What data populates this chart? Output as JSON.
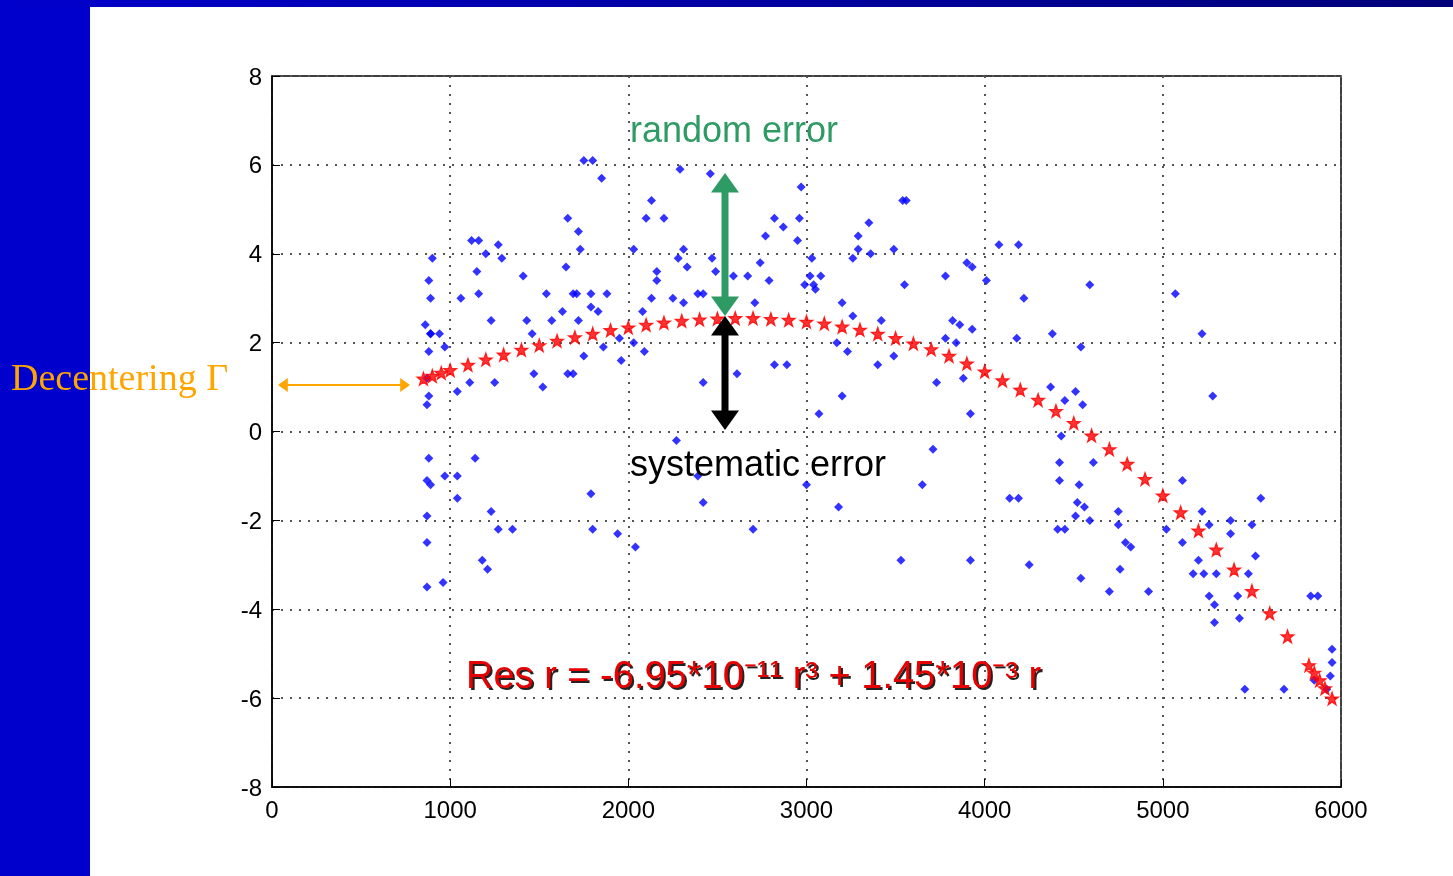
{
  "chart_data": {
    "type": "scatter",
    "xlim": [
      0,
      6000
    ],
    "xticks": [
      0,
      1000,
      2000,
      3000,
      4000,
      5000,
      6000
    ],
    "ylim": [
      -8,
      8
    ],
    "yticks": [
      -8,
      -6,
      -4,
      -2,
      0,
      2,
      4,
      6,
      8
    ],
    "grid": true,
    "annotations": [
      "random error",
      "systematic error",
      "Res r = -6.95*10⁻¹¹ r³ + 1.45*10⁻³ r",
      "Decentering Γ"
    ],
    "series": [
      {
        "color": "#0000ff",
        "marker": "diamond",
        "x": [
          900,
          880,
          890,
          860,
          890,
          880,
          870,
          880,
          870,
          880,
          870,
          890,
          870,
          870,
          870,
          960,
          1060,
          890,
          940,
          970,
          1040,
          1110,
          1250,
          1230,
          1120,
          1160,
          1200,
          1270,
          1290,
          1150,
          1160,
          1410,
          1430,
          1460,
          1470,
          1520,
          1540,
          1570,
          1630,
          1650,
          1660,
          1720,
          1730,
          1690,
          1710,
          1790,
          1880,
          1790,
          1830,
          1720,
          1660,
          1690,
          1750,
          1860,
          1950,
          1960,
          1750,
          1800,
          1850,
          2030,
          2100,
          2200,
          2130,
          2290,
          2460,
          2310,
          2280,
          2330,
          2160,
          2160,
          2130,
          2250,
          2310,
          2390,
          2420,
          2490,
          2470,
          2590,
          2670,
          2740,
          2770,
          2820,
          2870,
          2950,
          2960,
          2970,
          3030,
          3040,
          2790,
          2710,
          2080,
          2030,
          2090,
          2610,
          2420,
          2820,
          2890,
          3540,
          3560,
          3350,
          3290,
          3290,
          3260,
          3360,
          3490,
          3020,
          3080,
          2990,
          3050,
          3200,
          3550,
          3260,
          3420,
          3780,
          3900,
          3930,
          4010,
          4080,
          4190,
          4590,
          4220,
          5070,
          5220,
          5280,
          3820,
          3860,
          3930,
          3780,
          3840,
          4180,
          4380,
          4540,
          3170,
          3230,
          3490,
          3400,
          3730,
          3880,
          3200,
          3070,
          3920,
          4370,
          4510,
          4450,
          4550,
          1140,
          970,
          1040,
          1040,
          1230,
          1270,
          1350,
          1180,
          1210,
          1790,
          1800,
          1940,
          2040,
          2270,
          2390,
          2420,
          2700,
          3000,
          3710,
          3650,
          3180,
          3530,
          3920,
          4430,
          4420,
          4610,
          4420,
          4530,
          4140,
          4190,
          4520,
          4560,
          4510,
          4590,
          4750,
          4750,
          4790,
          4820,
          4410,
          4450,
          4250,
          4540,
          4760,
          4700,
          4920,
          5110,
          5550,
          5220,
          5020,
          5110,
          5260,
          5380,
          5500,
          5380,
          5520,
          5200,
          5170,
          5230,
          5300,
          5480,
          5260,
          5290,
          5420,
          5290,
          5430,
          5830,
          5870,
          5460,
          5680,
          5950,
          5950,
          5850,
          5920,
          5940
        ],
        "values": [
          3.9,
          3.4,
          3.0,
          2.4,
          2.2,
          1.8,
          1.2,
          0.8,
          0.6,
          -0.6,
          -1.1,
          -1.2,
          -1.9,
          -2.5,
          -3.5,
          -3.4,
          3.0,
          2.2,
          2.2,
          1.9,
          0.9,
          1.1,
          1.1,
          2.5,
          4.3,
          4.3,
          4.0,
          4.2,
          3.9,
          3.6,
          3.1,
          3.5,
          2.5,
          2.2,
          1.3,
          1.0,
          3.1,
          2.5,
          2.7,
          3.7,
          4.8,
          4.5,
          4.1,
          3.1,
          3.1,
          3.1,
          3.1,
          2.8,
          2.7,
          2.5,
          1.3,
          1.3,
          1.7,
          1.9,
          2.1,
          1.6,
          6.1,
          6.1,
          5.7,
          4.1,
          4.8,
          4.8,
          5.2,
          5.9,
          5.8,
          4.1,
          3.9,
          3.7,
          3.6,
          3.4,
          3.0,
          3.0,
          2.9,
          3.1,
          3.1,
          3.6,
          3.9,
          3.5,
          3.5,
          3.8,
          4.4,
          4.8,
          4.6,
          4.3,
          4.8,
          5.5,
          3.9,
          3.3,
          3.4,
          2.9,
          2.7,
          2.0,
          1.8,
          1.3,
          1.1,
          1.5,
          1.5,
          5.2,
          5.2,
          4.7,
          4.4,
          4.1,
          3.9,
          4.0,
          4.1,
          3.5,
          3.5,
          3.3,
          3.2,
          2.9,
          3.3,
          2.6,
          2.5,
          3.5,
          3.8,
          3.7,
          3.4,
          4.2,
          4.2,
          3.3,
          3.0,
          3.1,
          2.2,
          0.8,
          2.5,
          2.4,
          2.3,
          2.1,
          2.0,
          2.1,
          2.2,
          1.9,
          2.0,
          1.8,
          1.7,
          1.5,
          1.1,
          1.2,
          0.8,
          0.4,
          0.4,
          1.0,
          0.9,
          0.7,
          0.6,
          -0.6,
          -1.0,
          -1.0,
          -1.5,
          -1.8,
          -2.2,
          -2.2,
          -2.9,
          -3.1,
          -1.4,
          -2.2,
          -2.3,
          -2.6,
          -0.2,
          -1.0,
          -1.6,
          -2.2,
          -1.2,
          -0.4,
          -1.2,
          -1.7,
          -2.9,
          -2.9,
          -0.1,
          -0.7,
          -0.7,
          -1.1,
          -1.2,
          -1.5,
          -1.5,
          -1.6,
          -1.7,
          -1.9,
          -2.0,
          -1.8,
          -2.1,
          -2.5,
          -2.6,
          -2.2,
          -2.2,
          -3.0,
          -3.3,
          -3.1,
          -3.6,
          -3.6,
          -1.1,
          -1.5,
          -1.8,
          -2.2,
          -2.5,
          -2.1,
          -2.0,
          -2.1,
          -2.3,
          -2.8,
          -2.9,
          -3.2,
          -3.2,
          -3.2,
          -3.2,
          -3.7,
          -3.9,
          -3.7,
          -4.3,
          -4.2,
          -3.7,
          -3.7,
          -5.8,
          -5.8,
          -4.9,
          -5.2,
          -5.6,
          -5.8,
          -5.5
        ]
      },
      {
        "color": "#ff0000",
        "marker": "star",
        "x": [
          850,
          900,
          950,
          1000,
          1100,
          1200,
          1300,
          1400,
          1500,
          1600,
          1700,
          1800,
          1900,
          2000,
          2100,
          2200,
          2300,
          2400,
          2500,
          2600,
          2700,
          2800,
          2900,
          3000,
          3100,
          3200,
          3300,
          3400,
          3500,
          3600,
          3700,
          3800,
          3900,
          4000,
          4100,
          4200,
          4300,
          4400,
          4500,
          4600,
          4700,
          4800,
          4900,
          5000,
          5100,
          5200,
          5300,
          5400,
          5500,
          5600,
          5700,
          5820,
          5850,
          5880,
          5910,
          5950
        ],
        "values": [
          1.19,
          1.25,
          1.32,
          1.38,
          1.5,
          1.62,
          1.73,
          1.84,
          1.94,
          2.04,
          2.12,
          2.2,
          2.28,
          2.34,
          2.4,
          2.45,
          2.49,
          2.52,
          2.54,
          2.55,
          2.55,
          2.53,
          2.51,
          2.47,
          2.43,
          2.36,
          2.29,
          2.2,
          2.1,
          1.98,
          1.85,
          1.7,
          1.53,
          1.35,
          1.15,
          0.94,
          0.71,
          0.46,
          0.19,
          -0.09,
          -0.4,
          -0.73,
          -1.07,
          -1.44,
          -1.82,
          -2.23,
          -2.66,
          -3.11,
          -3.59,
          -4.09,
          -4.61,
          -5.26,
          -5.43,
          -5.6,
          -5.78,
          -6.01
        ]
      }
    ]
  }
}
